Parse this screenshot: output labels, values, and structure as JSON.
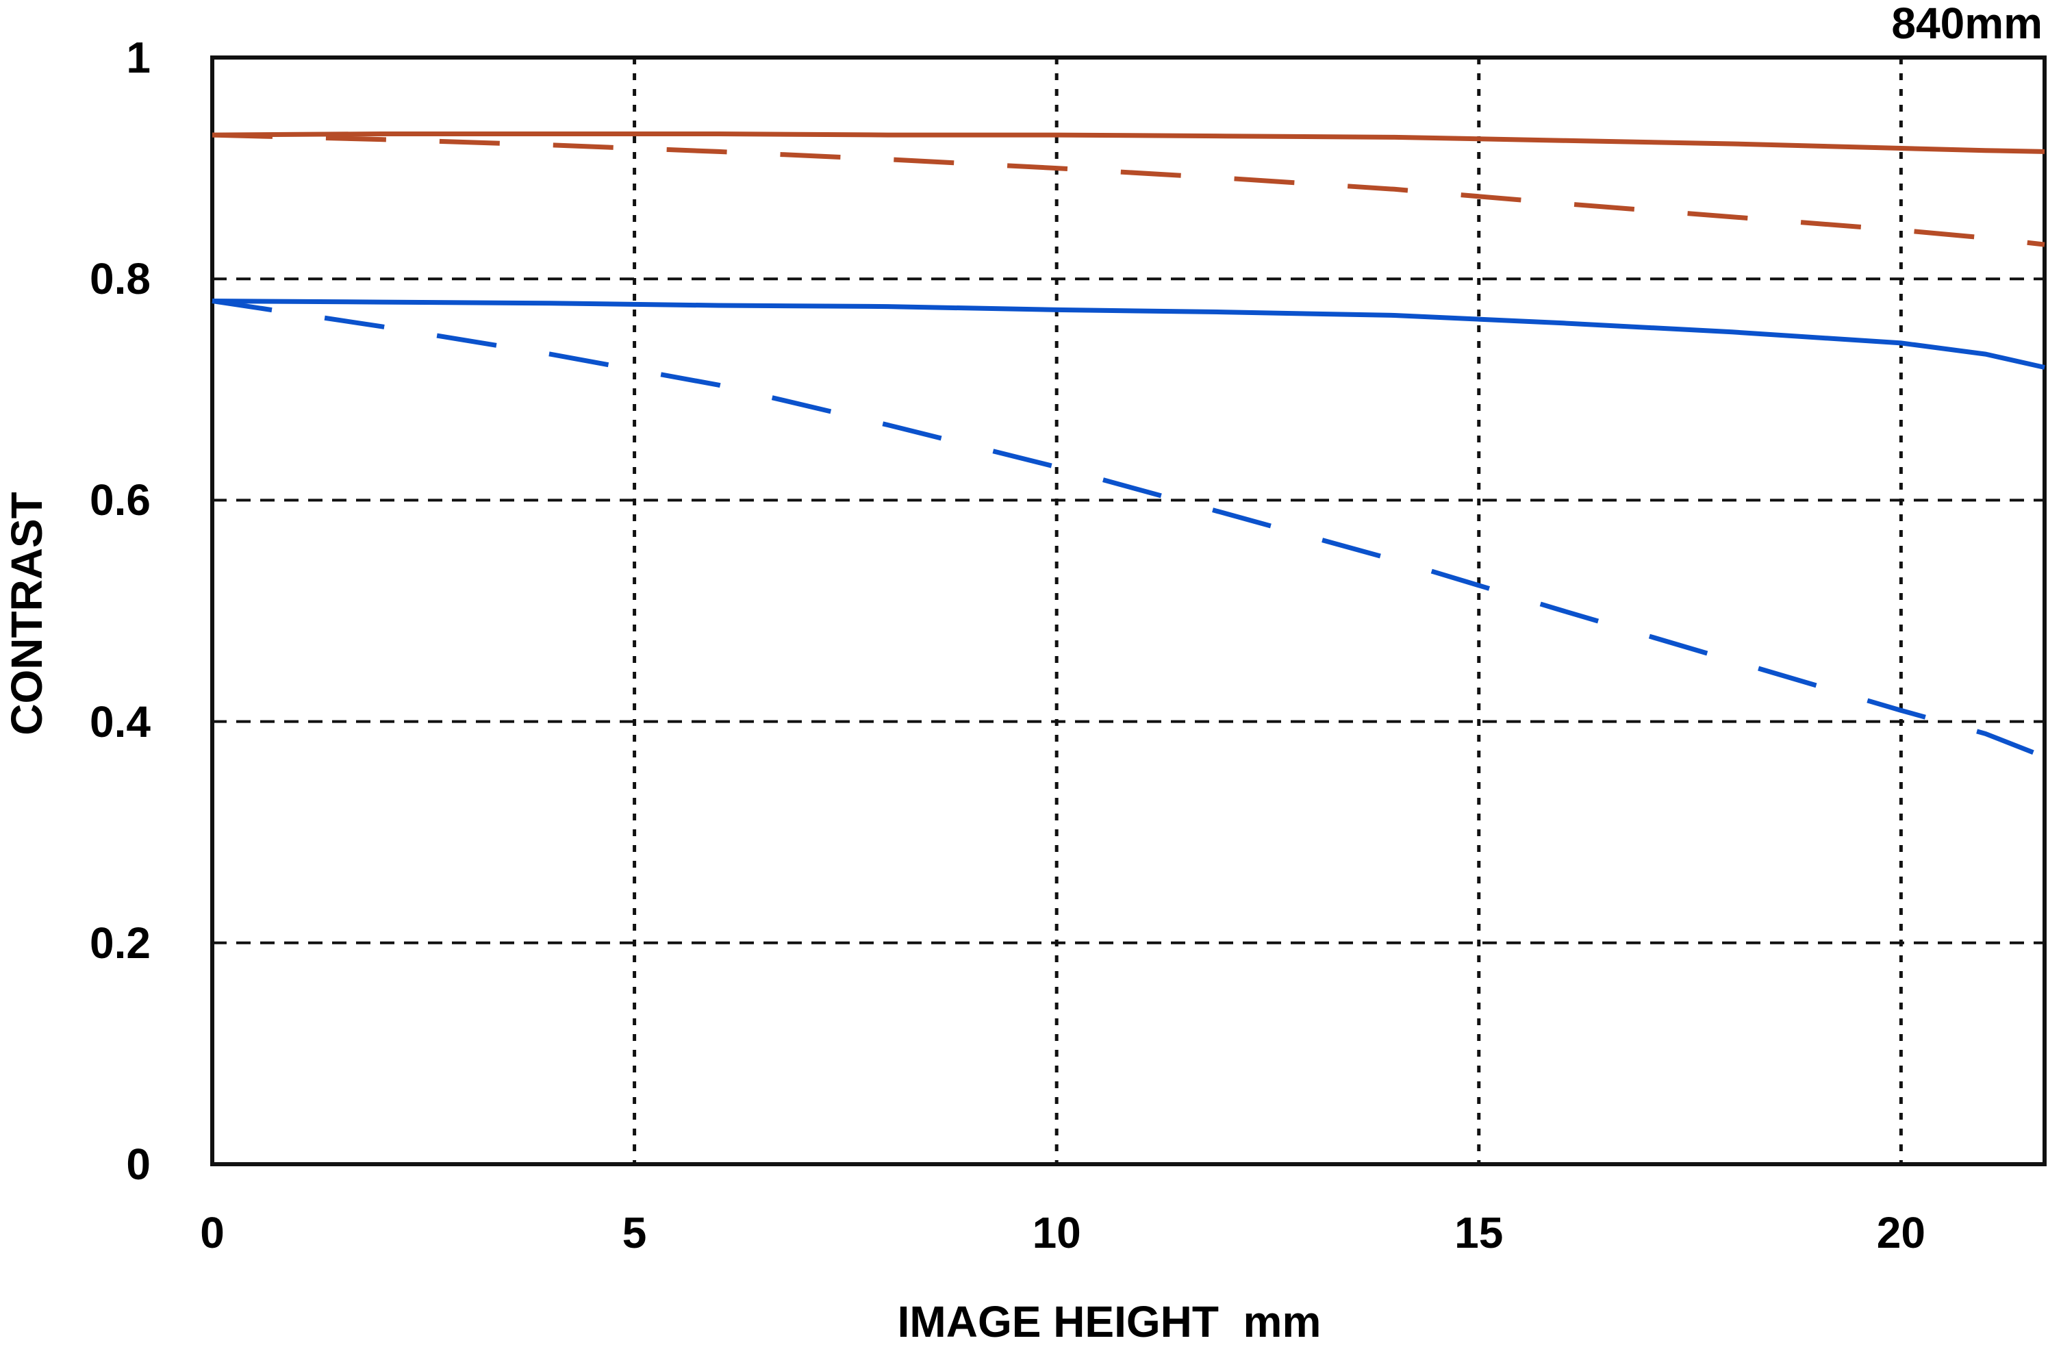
{
  "chart_data": {
    "type": "line",
    "title": "840mm",
    "xlabel": "IMAGE HEIGHT  mm",
    "ylabel": "CONTRAST",
    "xlim": [
      0,
      21.7
    ],
    "ylim": [
      0,
      1
    ],
    "grid": true,
    "legend": false,
    "x_ticks": [
      0,
      5,
      10,
      15,
      20
    ],
    "x_tick_labels": [
      "0",
      "5",
      "10",
      "15",
      "20"
    ],
    "y_ticks": [
      0,
      0.2,
      0.4,
      0.6,
      0.8,
      1
    ],
    "y_tick_labels": [
      "0",
      "0.2",
      "0.4",
      "0.6",
      "0.8",
      "1"
    ],
    "x_gridlines": [
      5,
      10,
      15,
      20
    ],
    "y_gridlines": [
      0.2,
      0.4,
      0.6,
      0.8
    ],
    "colors": {
      "red": "#b64c27",
      "blue": "#0b52cc",
      "grid": "#111111",
      "frame": "#111111",
      "text": "#000000",
      "background": "#ffffff"
    },
    "series": [
      {
        "name": "red-solid",
        "color": "red",
        "style": "solid",
        "points": [
          [
            0,
            0.93
          ],
          [
            2,
            0.931
          ],
          [
            4,
            0.931
          ],
          [
            6,
            0.931
          ],
          [
            8,
            0.93
          ],
          [
            10,
            0.93
          ],
          [
            12,
            0.929
          ],
          [
            14,
            0.928
          ],
          [
            16,
            0.925
          ],
          [
            18,
            0.922
          ],
          [
            20,
            0.918
          ],
          [
            21,
            0.916
          ],
          [
            21.7,
            0.915
          ]
        ]
      },
      {
        "name": "red-dashed",
        "color": "red",
        "style": "dashed",
        "points": [
          [
            0,
            0.93
          ],
          [
            2,
            0.926
          ],
          [
            4,
            0.921
          ],
          [
            6,
            0.915
          ],
          [
            8,
            0.908
          ],
          [
            10,
            0.9
          ],
          [
            12,
            0.891
          ],
          [
            14,
            0.881
          ],
          [
            16,
            0.868
          ],
          [
            18,
            0.856
          ],
          [
            20,
            0.844
          ],
          [
            21,
            0.837
          ],
          [
            21.7,
            0.831
          ]
        ]
      },
      {
        "name": "blue-solid",
        "color": "blue",
        "style": "solid",
        "points": [
          [
            0,
            0.78
          ],
          [
            2,
            0.779
          ],
          [
            4,
            0.778
          ],
          [
            6,
            0.776
          ],
          [
            8,
            0.775
          ],
          [
            10,
            0.772
          ],
          [
            12,
            0.77
          ],
          [
            14,
            0.767
          ],
          [
            16,
            0.76
          ],
          [
            18,
            0.752
          ],
          [
            20,
            0.742
          ],
          [
            21,
            0.732
          ],
          [
            21.7,
            0.72
          ]
        ]
      },
      {
        "name": "blue-dashed",
        "color": "blue",
        "style": "dashed",
        "points": [
          [
            0,
            0.78
          ],
          [
            2,
            0.757
          ],
          [
            4,
            0.732
          ],
          [
            6,
            0.704
          ],
          [
            8,
            0.668
          ],
          [
            10,
            0.63
          ],
          [
            12,
            0.588
          ],
          [
            14,
            0.546
          ],
          [
            16,
            0.5
          ],
          [
            18,
            0.455
          ],
          [
            20,
            0.41
          ],
          [
            21,
            0.389
          ],
          [
            21.7,
            0.368
          ]
        ]
      }
    ]
  }
}
